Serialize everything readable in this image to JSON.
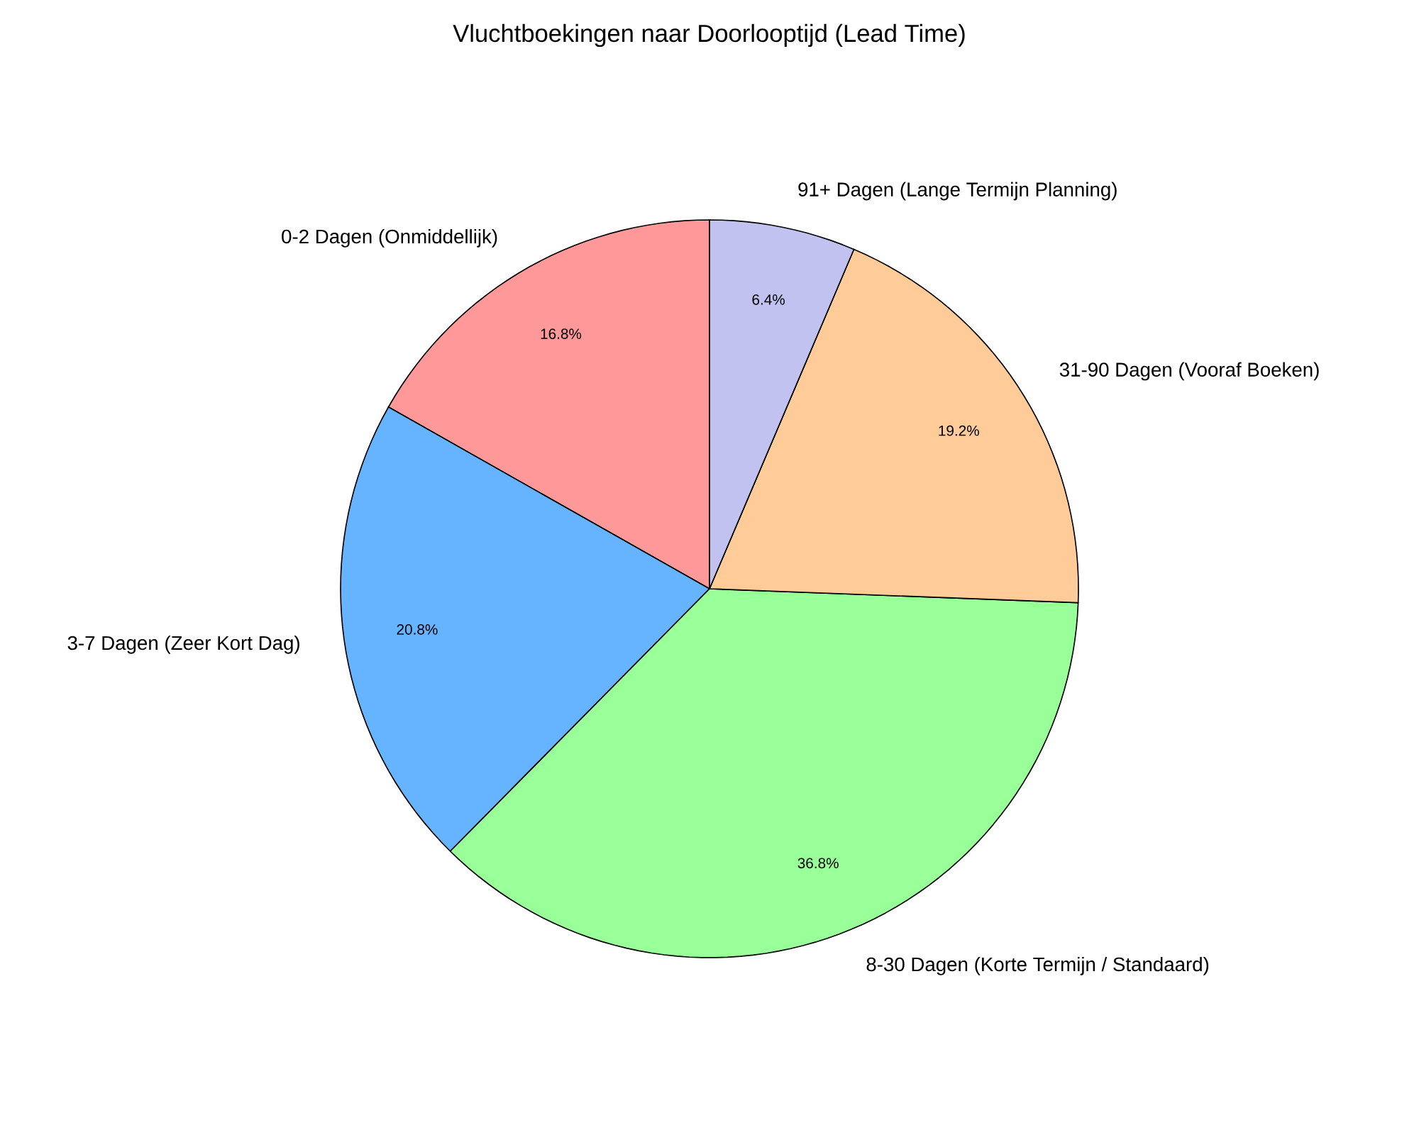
{
  "chart_data": {
    "type": "pie",
    "title": "Vluchtboekingen naar Doorlooptijd (Lead Time)",
    "categories": [
      "0-2 Dagen (Onmiddellijk)",
      "3-7 Dagen (Zeer Kort Dag)",
      "8-30 Dagen (Korte Termijn / Standaard)",
      "31-90 Dagen (Vooraf Boeken)",
      "91+ Dagen (Lange Termijn Planning)"
    ],
    "values": [
      16.8,
      20.8,
      36.8,
      19.2,
      6.4
    ],
    "colors": [
      "#ff9999",
      "#66b3ff",
      "#99ff99",
      "#ffcc99",
      "#c2c2f0"
    ],
    "value_labels": [
      "16.8%",
      "20.8%",
      "36.8%",
      "19.2%",
      "6.4%"
    ]
  }
}
